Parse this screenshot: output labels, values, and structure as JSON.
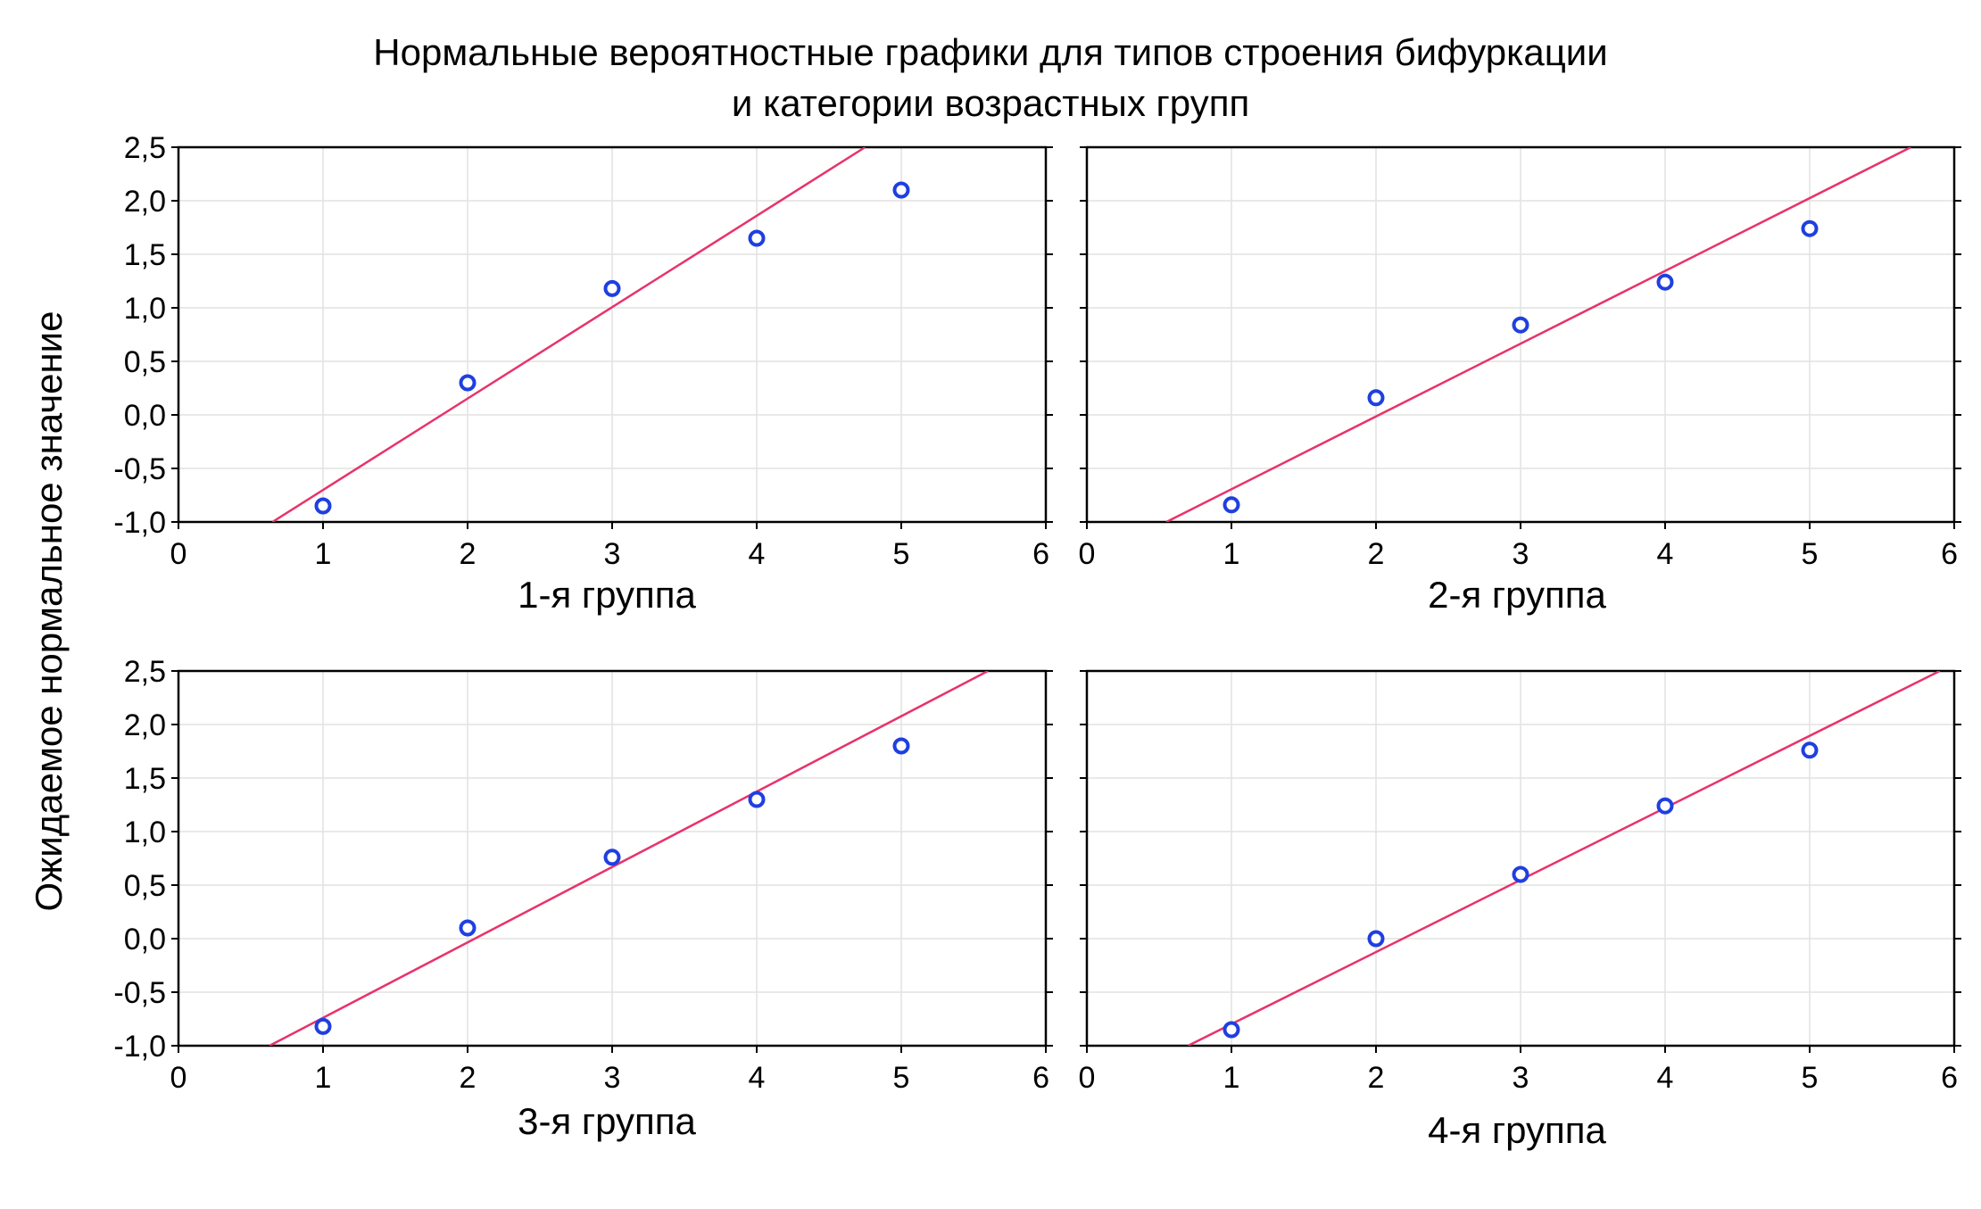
{
  "chart_data": {
    "type": "scatter",
    "title": "Нормальные вероятностные графики для  типов строения бифуркации",
    "subtitle": "и категории возрастных групп",
    "ylabel": "Ожидаемое нормальное значение",
    "xlim": [
      0,
      6
    ],
    "ylim": [
      -1.0,
      2.5
    ],
    "x_ticks": [
      "0",
      "1",
      "2",
      "3",
      "4",
      "5",
      "6"
    ],
    "y_ticks": [
      "-1,0",
      "-0,5",
      "0,0",
      "0,5",
      "1,0",
      "1,5",
      "2,0",
      "2,5"
    ],
    "grid": true,
    "colors": {
      "points": "#1f3fe0",
      "fit_line": "#e8336b",
      "grid": "#e2e2e2",
      "axis": "#000000"
    },
    "panels": [
      {
        "xlabel": "1-я группа",
        "points": [
          {
            "x": 1,
            "y": -0.85
          },
          {
            "x": 2,
            "y": 0.3
          },
          {
            "x": 3,
            "y": 1.18
          },
          {
            "x": 4,
            "y": 1.65
          },
          {
            "x": 5,
            "y": 2.1
          }
        ],
        "fit_line": [
          {
            "x": 0.65,
            "y": -1.0
          },
          {
            "x": 4.75,
            "y": 2.5
          }
        ]
      },
      {
        "xlabel": "2-я группа",
        "points": [
          {
            "x": 1,
            "y": -0.84
          },
          {
            "x": 2,
            "y": 0.16
          },
          {
            "x": 3,
            "y": 0.84
          },
          {
            "x": 4,
            "y": 1.24
          },
          {
            "x": 5,
            "y": 1.74
          }
        ],
        "fit_line": [
          {
            "x": 0.55,
            "y": -1.0
          },
          {
            "x": 5.7,
            "y": 2.5
          }
        ]
      },
      {
        "xlabel": "3-я группа",
        "points": [
          {
            "x": 1,
            "y": -0.82
          },
          {
            "x": 2,
            "y": 0.1
          },
          {
            "x": 3,
            "y": 0.76
          },
          {
            "x": 4,
            "y": 1.3
          },
          {
            "x": 5,
            "y": 1.8
          }
        ],
        "fit_line": [
          {
            "x": 0.63,
            "y": -1.0
          },
          {
            "x": 5.6,
            "y": 2.5
          }
        ]
      },
      {
        "xlabel": "4-я группа",
        "points": [
          {
            "x": 1,
            "y": -0.85
          },
          {
            "x": 2,
            "y": 0.0
          },
          {
            "x": 3,
            "y": 0.6
          },
          {
            "x": 4,
            "y": 1.24
          },
          {
            "x": 5,
            "y": 1.76
          }
        ],
        "fit_line": [
          {
            "x": 0.7,
            "y": -1.0
          },
          {
            "x": 5.9,
            "y": 2.5
          }
        ]
      }
    ]
  }
}
